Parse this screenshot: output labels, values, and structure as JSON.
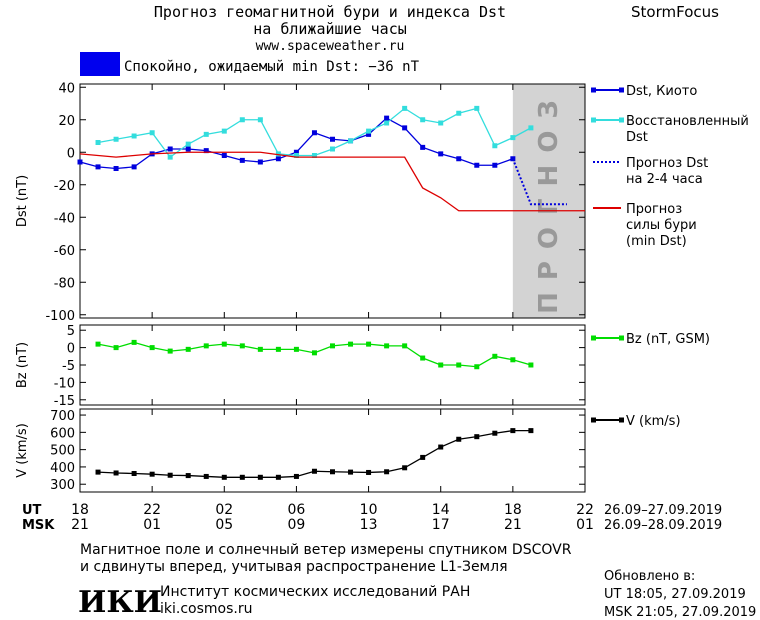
{
  "header": {
    "title": "Прогноз геомагнитной бури и индекса Dst\nна ближайшие часы",
    "url": "www.spaceweather.ru",
    "brand": "StormFocus"
  },
  "status": {
    "text": "Спокойно, ожидаемый min Dst: −36 nT",
    "color": "#0000ee"
  },
  "chart_data": [
    {
      "type": "line",
      "ylabel": "Dst (nT)",
      "xlim": [
        0,
        28
      ],
      "ylim": [
        -102,
        42
      ],
      "yticks": [
        40,
        20,
        0,
        -20,
        -40,
        -60,
        -80,
        -100
      ],
      "shade": {
        "xlim": [
          24,
          28
        ],
        "label": "ПРОГНОЗ",
        "color": "#d3d3d3"
      },
      "series": [
        {
          "name": "Dst, Киото",
          "color": "#0000dd",
          "marker": "square",
          "x": [
            0,
            1,
            2,
            3,
            4,
            5,
            6,
            7,
            8,
            9,
            10,
            11,
            12,
            13,
            14,
            15,
            16,
            17,
            18,
            19,
            20,
            21,
            22,
            23,
            24
          ],
          "values": [
            -6,
            -9,
            -10,
            -9,
            -1,
            2,
            2,
            1,
            -2,
            -5,
            -6,
            -4,
            0,
            12,
            8,
            7,
            11,
            21,
            15,
            3,
            -1,
            -4,
            -8,
            -8,
            -4
          ]
        },
        {
          "name": "Восстановленный\nDst",
          "color": "#33dddd",
          "marker": "square",
          "x": [
            1,
            2,
            3,
            4,
            5,
            6,
            7,
            8,
            9,
            10,
            11,
            12,
            13,
            14,
            15,
            16,
            17,
            18,
            19,
            20,
            21,
            22,
            23,
            24,
            25
          ],
          "values": [
            6,
            8,
            10,
            12,
            -3,
            5,
            11,
            13,
            20,
            20,
            -1,
            -2,
            -2,
            2,
            7,
            13,
            18,
            27,
            20,
            18,
            24,
            27,
            4,
            9,
            15
          ]
        },
        {
          "name": "Прогноз Dst\nна 2-4 часа",
          "color": "#0000dd",
          "dash": "dotted",
          "x": [
            24,
            25,
            26,
            27
          ],
          "values": [
            -4,
            -32,
            -32,
            -32
          ]
        },
        {
          "name": "Прогноз\nсилы бури\n(min Dst)",
          "color": "#dd0000",
          "x": [
            0,
            2,
            4,
            6,
            8,
            10,
            12,
            18,
            19,
            20,
            21,
            28
          ],
          "values": [
            -1,
            -3,
            -1,
            0,
            0,
            0,
            -3,
            -3,
            -22,
            -28,
            -36,
            -36
          ]
        }
      ]
    },
    {
      "type": "line",
      "ylabel": "Bz (nT)",
      "xlim": [
        0,
        28
      ],
      "ylim": [
        -16.5,
        6.5
      ],
      "yticks": [
        5,
        0,
        -5,
        -10,
        -15
      ],
      "series": [
        {
          "name": "Bz (nT, GSM)",
          "color": "#00dd00",
          "marker": "square",
          "x": [
            1,
            2,
            3,
            4,
            5,
            6,
            7,
            8,
            9,
            10,
            11,
            12,
            13,
            14,
            15,
            16,
            17,
            18,
            19,
            20,
            21,
            22,
            23,
            24,
            25
          ],
          "values": [
            1,
            0,
            1.5,
            0,
            -1,
            -0.5,
            0.5,
            1,
            0.5,
            -0.5,
            -0.5,
            -0.5,
            -1.5,
            0.5,
            1,
            1,
            0.5,
            0.5,
            -3,
            -5,
            -5,
            -5.5,
            -2.5,
            -3.5,
            -5
          ]
        }
      ]
    },
    {
      "type": "line",
      "ylabel": "V (km/s)",
      "xlim": [
        0,
        28
      ],
      "ylim": [
        255,
        735
      ],
      "yticks": [
        700,
        600,
        500,
        400,
        300
      ],
      "xticks": [
        {
          "value": 0,
          "label": "18"
        },
        {
          "value": 4,
          "label": "22"
        },
        {
          "value": 8,
          "label": "02"
        },
        {
          "value": 12,
          "label": "06"
        },
        {
          "value": 16,
          "label": "10"
        },
        {
          "value": 20,
          "label": "14"
        },
        {
          "value": 24,
          "label": "18"
        },
        {
          "value": 28,
          "label": "22"
        }
      ],
      "series": [
        {
          "name": "V (km/s)",
          "color": "#000000",
          "marker": "square",
          "x": [
            1,
            2,
            3,
            4,
            5,
            6,
            7,
            8,
            9,
            10,
            11,
            12,
            13,
            14,
            15,
            16,
            17,
            18,
            19,
            20,
            21,
            22,
            23,
            24,
            25
          ],
          "values": [
            370,
            365,
            362,
            358,
            352,
            350,
            345,
            340,
            340,
            340,
            340,
            345,
            375,
            372,
            370,
            368,
            372,
            395,
            455,
            515,
            560,
            575,
            595,
            610,
            610
          ]
        }
      ]
    }
  ],
  "time_axis": {
    "ut_label": "UT",
    "msk_label": "MSK",
    "msk_ticks": [
      "21",
      "01",
      "05",
      "09",
      "13",
      "17",
      "21",
      "01"
    ],
    "ut_dates": "26.09–27.09.2019",
    "msk_dates": "26.09–28.09.2019"
  },
  "footer": {
    "note": "Магнитное поле и солнечный ветер измерены спутником DSCOVR\nи сдвинуты вперед, учитывая распространение L1-Земля",
    "logo": "ИКИ",
    "institute": "Институт космических исследований РАН",
    "site": "iki.cosmos.ru",
    "updated": "Обновлено в:\nUT  18:05, 27.09.2019\nMSK 21:05, 27.09.2019"
  }
}
